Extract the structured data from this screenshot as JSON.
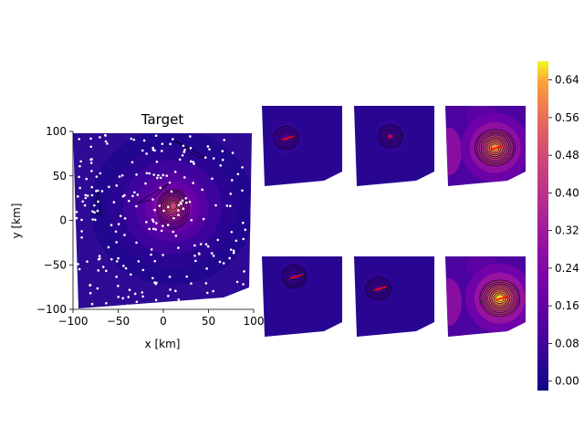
{
  "chart_data": {
    "type": "heatmap",
    "main": {
      "title": "Target",
      "xlabel": "x [km]",
      "ylabel": "y [km]",
      "xlim": [
        -100,
        100
      ],
      "ylim": [
        -100,
        100
      ],
      "xticks": [
        "−100",
        "−50",
        "0",
        "50",
        "100"
      ],
      "yticks": [
        "100",
        "50",
        "0",
        "−50",
        "−100"
      ],
      "source": {
        "x": 10,
        "y": 15,
        "peak": 0.45
      }
    },
    "colorbar": {
      "vmin": -0.02,
      "vmax": 0.68,
      "ticks": [
        "0.00",
        "0.08",
        "0.16",
        "0.24",
        "0.32",
        "0.40",
        "0.48",
        "0.56",
        "0.64"
      ],
      "tick_values": [
        0.0,
        0.08,
        0.16,
        0.24,
        0.32,
        0.4,
        0.48,
        0.56,
        0.64
      ],
      "colormap": "plasma"
    },
    "panels": [
      {
        "row": 0,
        "col": 0,
        "peak_x": 30,
        "peak_y": 40,
        "peak": 0.12,
        "arrow": true
      },
      {
        "row": 0,
        "col": 1,
        "peak_x": 45,
        "peak_y": 38,
        "peak": 0.1,
        "arrow": false
      },
      {
        "row": 0,
        "col": 2,
        "peak_x": 62,
        "peak_y": 52,
        "peak": 0.6,
        "arrow": true
      },
      {
        "row": 1,
        "col": 0,
        "peak_x": 40,
        "peak_y": 25,
        "peak": 0.08,
        "arrow": true
      },
      {
        "row": 1,
        "col": 1,
        "peak_x": 30,
        "peak_y": 40,
        "peak": 0.09,
        "arrow": true
      },
      {
        "row": 1,
        "col": 2,
        "peak_x": 68,
        "peak_y": 52,
        "peak": 0.66,
        "arrow": true
      }
    ],
    "colors": {
      "low": "#0d0887",
      "mid": "#9c179e",
      "high": "#f0f921",
      "arrow": "#ff0000",
      "stations": "#ffffff"
    }
  }
}
